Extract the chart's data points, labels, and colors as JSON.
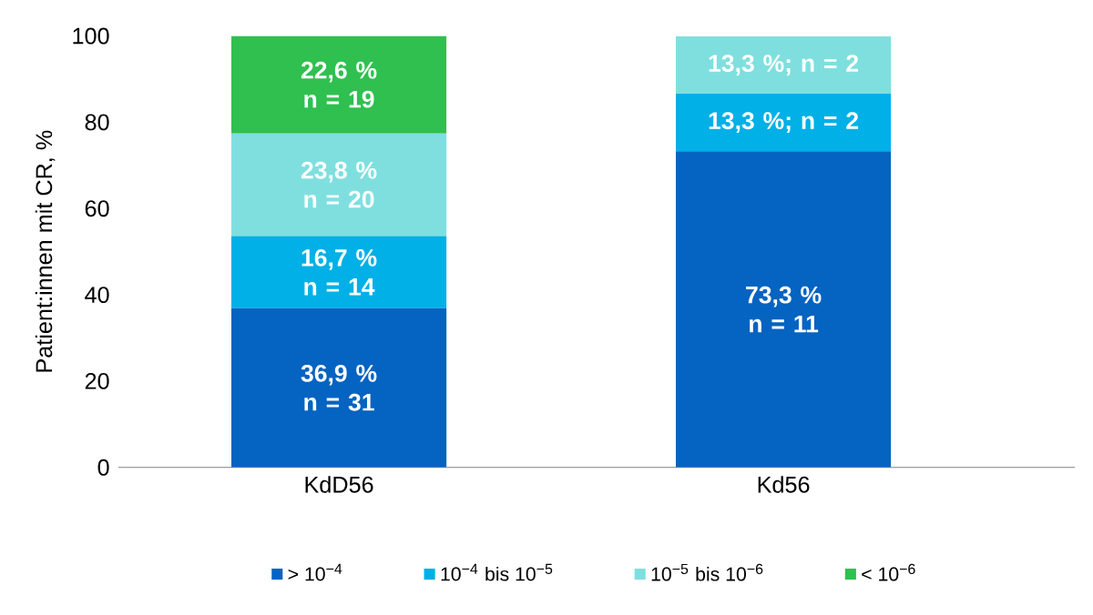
{
  "chart_data": {
    "type": "bar",
    "stacked": true,
    "ylabel": "Patient:innen mit CR, %",
    "categories": [
      "KdD56",
      "Kd56"
    ],
    "ylim": [
      0,
      100
    ],
    "yticks": [
      0,
      20,
      40,
      60,
      80,
      100
    ],
    "legend": "bottom",
    "grid": false,
    "series": [
      {
        "name": "> 10$^{−4}$",
        "color": "#0563c1",
        "values": [
          36.9,
          73.3
        ],
        "value_labels": [
          "36,9 %\nn = 31",
          "73,3 %\nn = 11"
        ]
      },
      {
        "name": "10$^{−4}$ bis 10$^{−5}$",
        "color": "#00b0e6",
        "values": [
          16.7,
          13.3
        ],
        "value_labels": [
          "16,7 %\nn = 14",
          "13,3 %; n = 2"
        ]
      },
      {
        "name": "10$^{−5}$ bis 10$^{−6}$",
        "color": "#7fdfdf",
        "values": [
          23.8,
          13.3
        ],
        "value_labels": [
          "23,8 %\nn = 20",
          "13,3 %; n = 2"
        ]
      },
      {
        "name": "< 10$^{−6}$",
        "color": "#2fc04f",
        "values": [
          22.6,
          null
        ],
        "value_labels": [
          "22,6 %\nn = 19",
          null
        ]
      }
    ]
  }
}
